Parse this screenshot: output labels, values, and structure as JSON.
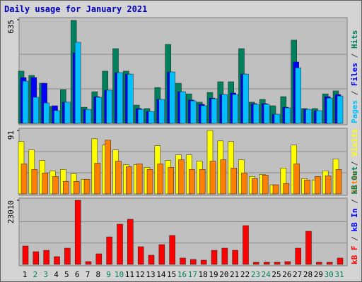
{
  "title": "Daily usage for January 2021",
  "chart_data": [
    {
      "type": "bar",
      "ylim": [
        0,
        635
      ],
      "yticks": [
        635
      ],
      "legend_separator": " / ",
      "series": [
        {
          "name": "Pages",
          "color": "#00c0ff",
          "values": [
            259,
            160,
            125,
            78,
            130,
            497,
            86,
            160,
            203,
            311,
            302,
            86,
            73,
            147,
            315,
            194,
            138,
            108,
            151,
            177,
            177,
            302,
            117,
            117,
            56,
            95,
            341,
            86,
            78,
            155,
            168
          ]
        },
        {
          "name": "Files",
          "color": "#0000ff",
          "values": [
            281,
            281,
            246,
            108,
            130,
            432,
            86,
            164,
            203,
            311,
            302,
            91,
            73,
            147,
            315,
            194,
            143,
            117,
            155,
            177,
            186,
            302,
            121,
            121,
            56,
            99,
            376,
            86,
            78,
            164,
            177
          ]
        },
        {
          "name": "Hits",
          "color": "#00805c",
          "values": [
            320,
            294,
            246,
            104,
            207,
            631,
            99,
            194,
            320,
            458,
            320,
            112,
            91,
            220,
            484,
            246,
            181,
            130,
            190,
            255,
            255,
            458,
            130,
            147,
            108,
            164,
            510,
            91,
            91,
            181,
            199
          ]
        }
      ]
    },
    {
      "type": "bar",
      "ylim": [
        0,
        91
      ],
      "yticks": [
        91
      ],
      "legend_separator": " / ",
      "series": [
        {
          "name": "Sites",
          "color": "#ff8000",
          "values": [
            43,
            35,
            30,
            25,
            18,
            18,
            21,
            44,
            77,
            47,
            39,
            43,
            35,
            43,
            38,
            49,
            35,
            35,
            47,
            49,
            37,
            30,
            22,
            27,
            13,
            15,
            43,
            20,
            25,
            26,
            35
          ]
        },
        {
          "name": "Visits",
          "color": "#ffff00",
          "values": [
            75,
            63,
            48,
            33,
            35,
            29,
            21,
            79,
            70,
            63,
            42,
            42,
            38,
            69,
            48,
            56,
            56,
            47,
            91,
            76,
            75,
            49,
            25,
            28,
            13,
            37,
            70,
            22,
            20,
            33,
            50
          ]
        }
      ]
    },
    {
      "type": "bar",
      "ylim": [
        0,
        23010
      ],
      "yticks": [
        23010
      ],
      "legend_separator": " / ",
      "categories": [
        "1",
        "2",
        "3",
        "4",
        "5",
        "6",
        "7",
        "8",
        "9",
        "10",
        "11",
        "12",
        "13",
        "14",
        "15",
        "16",
        "17",
        "18",
        "19",
        "20",
        "21",
        "22",
        "23",
        "24",
        "25",
        "26",
        "27",
        "28",
        "29",
        "30",
        "31"
      ],
      "category_colors": [
        "#000000",
        "#00805c",
        "#00805c",
        "#000000",
        "#000000",
        "#000000",
        "#000000",
        "#000000",
        "#00805c",
        "#00805c",
        "#000000",
        "#000000",
        "#000000",
        "#000000",
        "#000000",
        "#00805c",
        "#00805c",
        "#000000",
        "#000000",
        "#000000",
        "#000000",
        "#000000",
        "#00805c",
        "#00805c",
        "#000000",
        "#000000",
        "#000000",
        "#000000",
        "#000000",
        "#00805c",
        "#00805c"
      ],
      "series": [
        {
          "name": "kB F",
          "color": "#ff0000",
          "values": [
            6576,
            4552,
            5058,
            2782,
            5817,
            23010,
            1012,
            3794,
            9863,
            14415,
            16186,
            6323,
            3288,
            7081,
            10369,
            2276,
            1770,
            1517,
            5058,
            5817,
            5058,
            13910,
            759,
            759,
            759,
            1012,
            5817,
            11886,
            759,
            759,
            2276
          ]
        },
        {
          "name": "kB In",
          "color": "#0000ff",
          "values": [
            0,
            0,
            0,
            0,
            0,
            0,
            0,
            0,
            0,
            0,
            0,
            0,
            0,
            0,
            0,
            0,
            0,
            0,
            0,
            0,
            0,
            0,
            0,
            0,
            0,
            0,
            0,
            0,
            0,
            0,
            0
          ]
        },
        {
          "name": "kB Out",
          "color": "#00805c",
          "values": [
            0,
            0,
            0,
            0,
            0,
            0,
            0,
            0,
            0,
            0,
            0,
            0,
            0,
            0,
            0,
            0,
            0,
            0,
            0,
            0,
            0,
            0,
            0,
            0,
            0,
            0,
            0,
            0,
            0,
            0,
            0
          ]
        }
      ]
    }
  ]
}
